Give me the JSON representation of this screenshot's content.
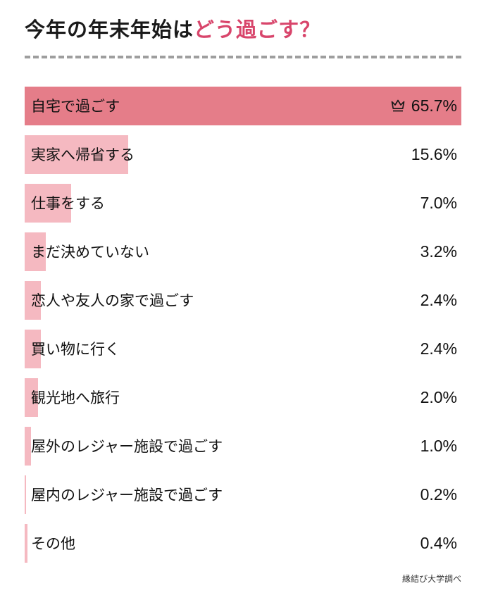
{
  "title": {
    "main": "今年の年末年始は",
    "accent": "どう過ごす？"
  },
  "footer": {
    "source_label": "縁結び大学調べ"
  },
  "colors": {
    "title_accent": "#d8456b",
    "bar_top": "#e57d89",
    "bar_light": "#f5b9c1",
    "text": "#111111",
    "divider": "#9e9e9e"
  },
  "icons": {
    "crown": "crown-icon (first-rank marker on top bar)"
  },
  "chart_data": {
    "type": "bar",
    "orientation": "horizontal",
    "title": "今年の年末年始はどう過ごす？",
    "source": "縁結び大学調べ",
    "xlabel": "",
    "ylabel": "",
    "axis_max": 65.7,
    "grid": false,
    "legend": "none",
    "categories": [
      "自宅で過ごす",
      "実家へ帰省する",
      "仕事をする",
      "まだ決めていない",
      "恋人や友人の家で過ごす",
      "買い物に行く",
      "観光地へ旅行",
      "屋外のレジャー施設で過ごす",
      "屋内のレジャー施設で過ごす",
      "その他"
    ],
    "values": [
      65.7,
      15.6,
      7.0,
      3.2,
      2.4,
      2.4,
      2.0,
      1.0,
      0.2,
      0.4
    ],
    "value_labels": [
      "65.7%",
      "15.6%",
      "7.0%",
      "3.2%",
      "2.4%",
      "2.4%",
      "2.0%",
      "1.0%",
      "0.2%",
      "0.4%"
    ],
    "top_row_has_crown": true
  }
}
